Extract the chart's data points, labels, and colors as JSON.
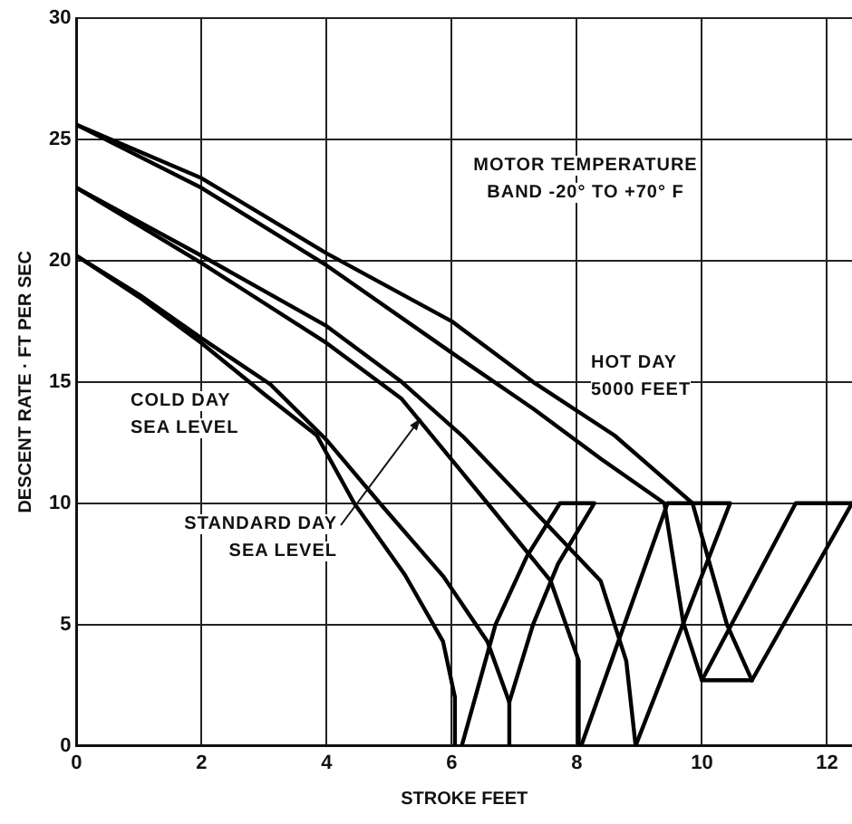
{
  "chart_data": {
    "type": "line",
    "xlabel": "STROKE FEET",
    "ylabel": "DESCENT RATE · FT PER SEC",
    "xlim": [
      0,
      12.4
    ],
    "xticks": [
      0,
      2,
      4,
      6,
      8,
      10,
      12
    ],
    "ylim": [
      0,
      30
    ],
    "yticks": [
      0,
      5,
      10,
      15,
      20,
      25,
      30
    ],
    "grid": true,
    "legend": false,
    "marker": "none",
    "line_style": "solid",
    "series": [
      {
        "color": "#000000",
        "x": [
          0,
          1,
          2,
          3,
          3.84,
          4.44,
          5.25,
          5.86,
          6.05,
          6.05
        ],
        "values": [
          20.2,
          18.5,
          16.6,
          14.5,
          12.8,
          10,
          7.05,
          4.3,
          2,
          0
        ]
      },
      {
        "color": "#000000",
        "x": [
          0,
          1,
          2,
          3.1,
          4,
          4.85,
          5.86,
          6.57,
          6.92,
          6.92
        ],
        "values": [
          20.2,
          18.6,
          16.8,
          14.9,
          12.6,
          10,
          7,
          4.3,
          1.8,
          0
        ]
      },
      {
        "color": "#000000",
        "x": [
          6.16,
          6.7,
          7.2,
          7.73,
          8.28,
          7.7,
          7.3,
          6.92
        ],
        "values": [
          0,
          5,
          7.8,
          10,
          10,
          7.5,
          5,
          1.8
        ]
      },
      {
        "color": "#000000",
        "x": [
          0,
          2,
          4,
          5.2,
          6.57,
          7.58,
          8.03,
          8.03
        ],
        "values": [
          23,
          19.9,
          16.6,
          14.3,
          10,
          6.8,
          3.5,
          0
        ]
      },
      {
        "color": "#000000",
        "x": [
          0,
          2,
          4,
          5.2,
          6.2,
          7.2,
          8.38,
          8.79,
          8.94
        ],
        "values": [
          23,
          20.2,
          17.3,
          15,
          12.7,
          10,
          6.8,
          3.5,
          0
        ]
      },
      {
        "color": "#000000",
        "x": [
          8.07,
          9.45,
          10.45,
          8.94
        ],
        "values": [
          0,
          10,
          10,
          0
        ]
      },
      {
        "color": "#000000",
        "x": [
          0,
          2,
          4,
          6,
          7.3,
          8.4,
          9.4,
          9.7,
          10
        ],
        "values": [
          25.6,
          23,
          19.8,
          16.2,
          13.9,
          11.8,
          10,
          5.1,
          2.7
        ]
      },
      {
        "color": "#000000",
        "x": [
          0,
          2,
          4,
          6,
          7.3,
          8.6,
          9.85,
          10.4,
          10.8
        ],
        "values": [
          25.6,
          23.4,
          20.3,
          17.5,
          15,
          12.8,
          10,
          5,
          2.7
        ]
      },
      {
        "color": "#000000",
        "x": [
          10.8,
          10,
          11.5,
          12.4
        ],
        "values": [
          2.7,
          2.7,
          10,
          10
        ]
      },
      {
        "color": "#000000",
        "x": [
          12.4,
          10.8
        ],
        "values": [
          10,
          2.7
        ]
      }
    ],
    "annotations": [
      "MOTOR TEMPERATURE BAND -20° TO +70° F",
      "HOT DAY 5000 FEET",
      "COLD DAY SEA LEVEL",
      {
        "text": "STANDARD DAY SEA LEVEL",
        "x": 5.5,
        "y": 13.5
      }
    ]
  }
}
